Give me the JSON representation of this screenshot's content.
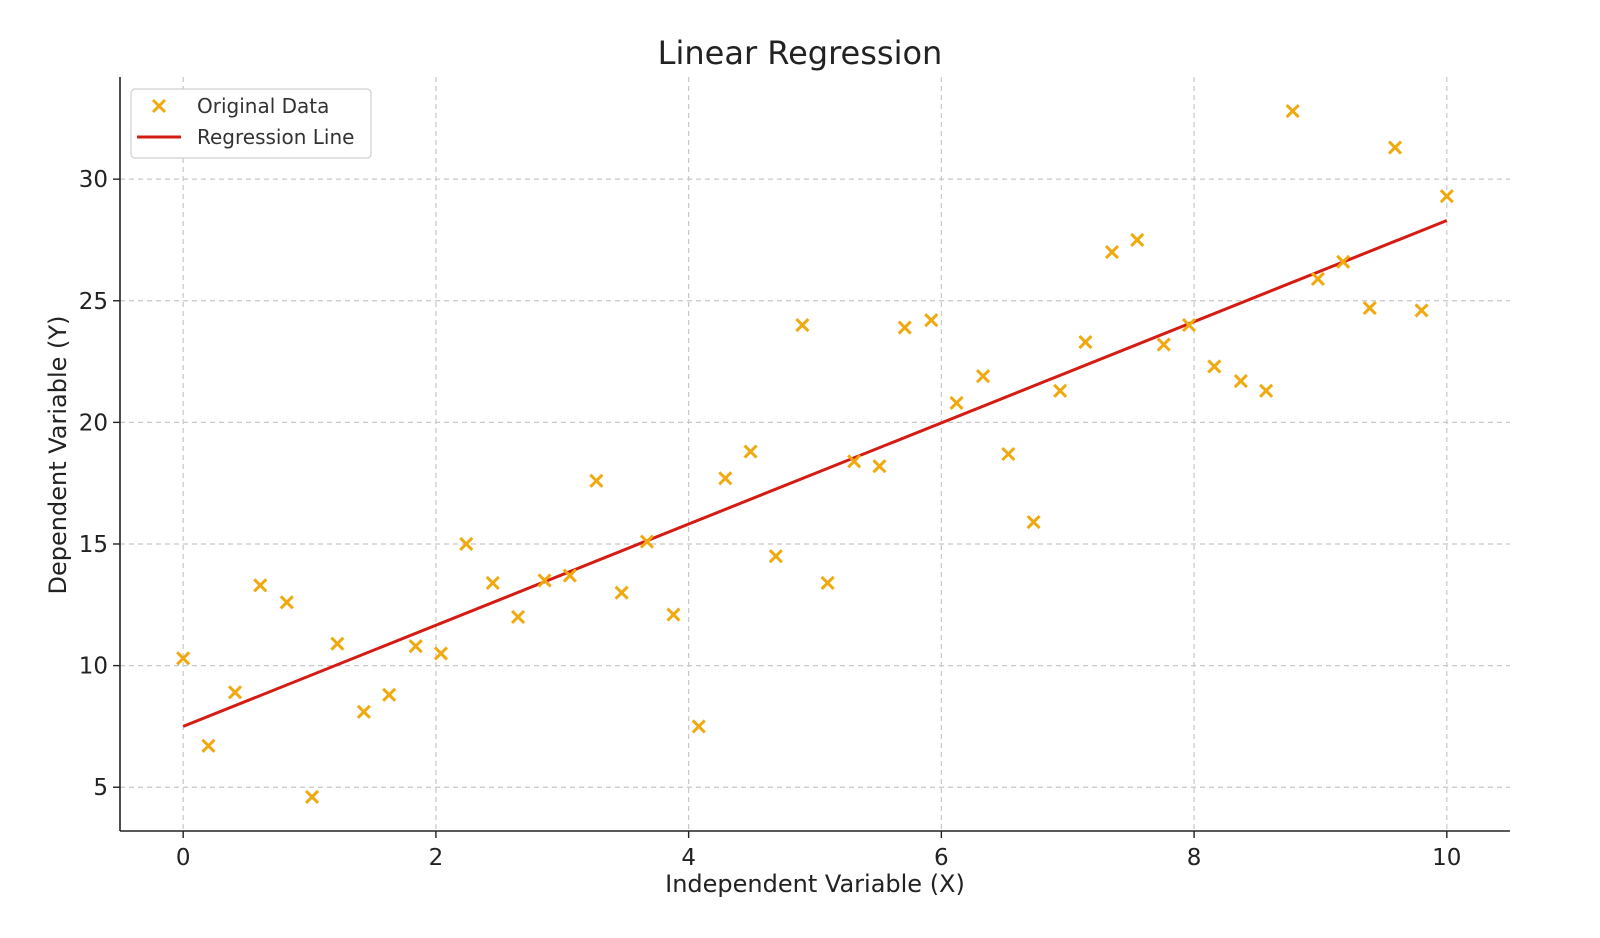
{
  "chart_data": {
    "type": "scatter",
    "title": "Linear Regression",
    "xlabel": "Independent Variable (X)",
    "ylabel": "Dependent Variable (Y)",
    "xlim": [
      -0.5,
      10.5
    ],
    "ylim": [
      3.2,
      34.2
    ],
    "xticks": [
      0,
      2,
      4,
      6,
      8,
      10
    ],
    "yticks": [
      5,
      10,
      15,
      20,
      25,
      30
    ],
    "grid": true,
    "legend_position": "top-left",
    "colors": {
      "scatter": "#f0a90f",
      "line": "#d41c13"
    },
    "series": [
      {
        "name": "Original Data",
        "kind": "scatter",
        "marker": "x",
        "x": [
          0.0,
          0.2,
          0.41,
          0.61,
          0.82,
          1.02,
          1.22,
          1.43,
          1.63,
          1.84,
          2.04,
          2.24,
          2.45,
          2.65,
          2.86,
          3.06,
          3.27,
          3.47,
          3.67,
          3.88,
          4.08,
          4.29,
          4.49,
          4.69,
          4.9,
          5.1,
          5.31,
          5.51,
          5.71,
          5.92,
          6.12,
          6.33,
          6.53,
          6.73,
          6.94,
          7.14,
          7.35,
          7.55,
          7.76,
          7.96,
          8.16,
          8.37,
          8.57,
          8.78,
          8.98,
          9.18,
          9.39,
          9.59,
          9.8,
          10.0
        ],
        "y": [
          10.3,
          6.7,
          8.9,
          13.3,
          12.6,
          4.6,
          10.9,
          8.1,
          8.8,
          10.8,
          10.5,
          15.0,
          13.4,
          12.0,
          13.5,
          13.7,
          17.6,
          13.0,
          15.1,
          12.1,
          7.5,
          17.7,
          18.8,
          14.5,
          24.0,
          13.4,
          18.4,
          18.2,
          23.9,
          24.2,
          20.8,
          21.9,
          18.7,
          15.9,
          21.3,
          23.3,
          27.0,
          27.5,
          23.2,
          24.0,
          22.3,
          21.7,
          21.3,
          32.8,
          25.9,
          26.6,
          24.7,
          31.3,
          24.6,
          29.3
        ]
      },
      {
        "name": "Regression Line",
        "kind": "line",
        "x": [
          0,
          10
        ],
        "y": [
          7.5,
          28.3
        ]
      }
    ]
  }
}
